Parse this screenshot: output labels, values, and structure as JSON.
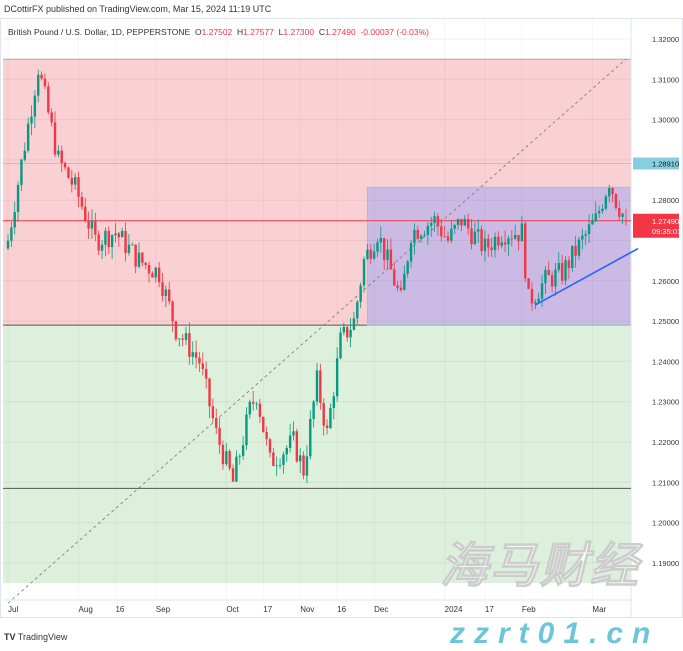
{
  "header": {
    "published": "DCottirFX published on TradingView.com, Mar 15, 2024 11:19 UTC",
    "symbol": "British Pound / U.S. Dollar, 1D, PEPPERSTONE",
    "o_label": "O",
    "o": "1.27502",
    "h_label": "H",
    "h": "1.27577",
    "l_label": "L",
    "l": "1.27300",
    "c_label": "C",
    "c": "1.27490",
    "change": "-0.00037 (-0.03%)"
  },
  "footer": {
    "brand": "TradingView"
  },
  "watermark": {
    "cn": "海马财经",
    "url": "zzrt01.cn"
  },
  "chart_data": {
    "type": "candlestick",
    "symbol": "GBPUSD",
    "timeframe": "1D",
    "ylim": [
      1.185,
      1.325
    ],
    "yticks": [
      "1.32000",
      "1.31000",
      "1.30000",
      "1.29000",
      "1.28000",
      "1.27000",
      "1.26000",
      "1.25000",
      "1.24000",
      "1.23000",
      "1.22000",
      "1.21000",
      "1.20000",
      "1.19000"
    ],
    "xticks": [
      {
        "d": "2023-07-03",
        "t": "Jul"
      },
      {
        "d": "2023-08-01",
        "t": "Aug"
      },
      {
        "d": "2023-08-16",
        "t": "16"
      },
      {
        "d": "2023-09-01",
        "t": "Sep"
      },
      {
        "d": "2023-10-02",
        "t": "Oct"
      },
      {
        "d": "2023-10-17",
        "t": "17"
      },
      {
        "d": "2023-11-01",
        "t": "Nov"
      },
      {
        "d": "2023-11-16",
        "t": "16"
      },
      {
        "d": "2023-12-01",
        "t": "Dec"
      },
      {
        "d": "2024-01-01",
        "t": "2024"
      },
      {
        "d": "2024-01-17",
        "t": "17"
      },
      {
        "d": "2024-02-01",
        "t": "Feb"
      },
      {
        "d": "2024-03-01",
        "t": "Mar"
      }
    ],
    "start": "2023-07-03",
    "end": "2024-03-15",
    "close_path": [
      [
        "2023-07-03",
        1.27
      ],
      [
        "2023-07-14",
        1.313
      ],
      [
        "2023-07-24",
        1.29
      ],
      [
        "2023-07-31",
        1.283
      ],
      [
        "2023-08-08",
        1.27
      ],
      [
        "2023-08-16",
        1.272
      ],
      [
        "2023-08-25",
        1.265
      ],
      [
        "2023-09-04",
        1.262
      ],
      [
        "2023-09-11",
        1.248
      ],
      [
        "2023-09-20",
        1.24
      ],
      [
        "2023-09-27",
        1.222
      ],
      [
        "2023-10-04",
        1.21
      ],
      [
        "2023-10-11",
        1.228
      ],
      [
        "2023-10-13",
        1.232
      ],
      [
        "2023-10-19",
        1.215
      ],
      [
        "2023-10-30",
        1.22
      ],
      [
        "2023-11-02",
        1.213
      ],
      [
        "2023-11-08",
        1.235
      ],
      [
        "2023-11-13",
        1.222
      ],
      [
        "2023-11-17",
        1.245
      ],
      [
        "2023-11-23",
        1.25
      ],
      [
        "2023-11-28",
        1.265
      ],
      [
        "2023-12-04",
        1.272
      ],
      [
        "2023-12-11",
        1.26
      ],
      [
        "2023-12-13",
        1.255
      ],
      [
        "2023-12-18",
        1.272
      ],
      [
        "2023-12-27",
        1.275
      ],
      [
        "2024-01-02",
        1.27
      ],
      [
        "2024-01-08",
        1.275
      ],
      [
        "2024-01-17",
        1.268
      ],
      [
        "2024-01-24",
        1.272
      ],
      [
        "2024-02-01",
        1.272
      ],
      [
        "2024-02-05",
        1.255
      ],
      [
        "2024-02-12",
        1.26
      ],
      [
        "2024-02-19",
        1.262
      ],
      [
        "2024-02-27",
        1.27
      ],
      [
        "2024-03-04",
        1.275
      ],
      [
        "2024-03-08",
        1.285
      ],
      [
        "2024-03-12",
        1.28
      ],
      [
        "2024-03-15",
        1.2749
      ]
    ],
    "zones": [
      {
        "type": "resistance",
        "from": 1.249,
        "to": 1.315,
        "color": "#f9d0d3"
      },
      {
        "type": "support",
        "from": 1.185,
        "to": 1.249,
        "color": "#dcf0dc"
      }
    ],
    "range_box": {
      "start": "2023-11-29",
      "top": 1.2832,
      "bottom": 1.249,
      "color": "#c3b7e6"
    },
    "levels": [
      {
        "price": 1.2891,
        "label": "1.28910",
        "color": "#87cfe0"
      },
      {
        "price": 1.2749,
        "label": "1.27490",
        "color": "#f23645",
        "countdown": "09:35:01"
      },
      {
        "price": 1.2085,
        "color": "#555"
      }
    ],
    "trendline": {
      "from": [
        "2024-02-07",
        1.254
      ],
      "to": [
        "2024-03-20",
        1.268
      ],
      "color": "#2962ff"
    },
    "diagonal": {
      "from": [
        "2023-07-03",
        1.18
      ],
      "to": [
        "2024-03-15",
        1.315
      ]
    },
    "colors": {
      "up": "#089981",
      "down": "#f23645"
    }
  }
}
